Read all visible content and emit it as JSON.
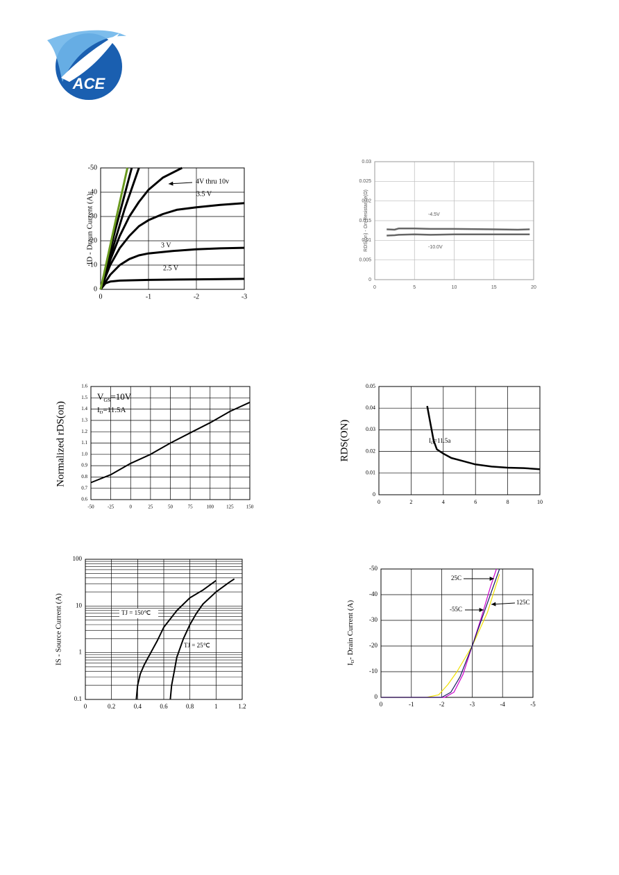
{
  "logo": {
    "text": "ACE"
  },
  "chart_data": [
    {
      "type": "line",
      "y_label": "ID - Draun Current (A)",
      "xlim": [
        0,
        -3
      ],
      "xticks": [
        0,
        -1,
        -2,
        -3
      ],
      "ylim": [
        0,
        -50
      ],
      "yticks": [
        0,
        -10,
        -20,
        -30,
        -40,
        -50
      ],
      "grid": true,
      "series": [
        {
          "name": "2.5 V",
          "color": "#000000",
          "x": [
            0,
            -0.1,
            -0.2,
            -0.4,
            -1,
            -2,
            -3
          ],
          "values": [
            0,
            -2.5,
            -3.2,
            -3.6,
            -3.9,
            -4.1,
            -4.3
          ]
        },
        {
          "name": "3 V",
          "color": "#000000",
          "x": [
            0,
            -0.2,
            -0.4,
            -0.6,
            -0.8,
            -1,
            -1.5,
            -2,
            -2.5,
            -3
          ],
          "values": [
            0,
            -6,
            -10,
            -12.5,
            -14,
            -14.8,
            -15.8,
            -16.5,
            -16.9,
            -17.1
          ]
        },
        {
          "name": "3.5 V",
          "color": "#000000",
          "x": [
            0,
            -0.2,
            -0.4,
            -0.6,
            -0.8,
            -1,
            -1.3,
            -1.6,
            -2,
            -2.5,
            -3
          ],
          "values": [
            0,
            -10,
            -17,
            -22,
            -26,
            -28.5,
            -31,
            -32.8,
            -33.8,
            -34.8,
            -35.5
          ]
        },
        {
          "name": "4V thru 10v",
          "color": "#000000",
          "x": [
            0,
            -0.2,
            -0.4,
            -0.6,
            -0.8,
            -1,
            -1.3,
            -1.7
          ],
          "values": [
            0,
            -12,
            -22,
            -30,
            -36,
            -41,
            -46,
            -50
          ]
        },
        {
          "color": "#000000",
          "x": [
            0,
            -0.3,
            -0.5,
            -0.8
          ],
          "values": [
            0,
            -20,
            -33,
            -50
          ]
        },
        {
          "color": "#000000",
          "x": [
            0,
            -0.3,
            -0.65
          ],
          "values": [
            0,
            -24,
            -50
          ]
        },
        {
          "color": "#6a9a1f",
          "x": [
            0,
            -0.3,
            -0.56
          ],
          "values": [
            0,
            -27,
            -50
          ]
        }
      ]
    },
    {
      "type": "line",
      "y_label": "RDS(on) - On-Resistance(Ω)",
      "xlim": [
        0,
        20
      ],
      "xticks": [
        0,
        5,
        10,
        15,
        20
      ],
      "ylim": [
        0,
        0.03
      ],
      "yticks": [
        0,
        0.005,
        0.01,
        0.015,
        0.02,
        0.025,
        0.03
      ],
      "grid": true,
      "series": [
        {
          "name": "-4.5V",
          "color": "#666666",
          "x": [
            1.5,
            2.5,
            3,
            5,
            7,
            10,
            15,
            18,
            19.5
          ],
          "values": [
            0.0128,
            0.0127,
            0.013,
            0.013,
            0.0129,
            0.0129,
            0.0128,
            0.0127,
            0.0128
          ]
        },
        {
          "name": "-10.0V",
          "color": "#666666",
          "x": [
            1.5,
            2.5,
            3,
            5,
            7,
            10,
            15,
            18,
            19.5
          ],
          "values": [
            0.0112,
            0.0113,
            0.0114,
            0.0115,
            0.0114,
            0.0115,
            0.0115,
            0.0115,
            0.0115
          ]
        }
      ]
    },
    {
      "type": "line",
      "y_label": "Normalized rDS(on)",
      "xlim": [
        -50,
        150
      ],
      "xticks": [
        -50,
        -25,
        0,
        25,
        50,
        75,
        100,
        125,
        150
      ],
      "ylim": [
        0.6,
        1.6
      ],
      "yticks": [
        0.6,
        0.7,
        0.8,
        0.9,
        {
          "value": 1,
          "label": "1.0"
        },
        1.1,
        1.2,
        1.3,
        1.4,
        1.5,
        1.6
      ],
      "grid": true,
      "annotations": [
        {
          "parts": [
            {
              "text": "V"
            },
            {
              "text": "GS",
              "sub": true
            },
            {
              "text": "=10V"
            }
          ]
        },
        {
          "parts": [
            {
              "text": "I"
            },
            {
              "text": "D",
              "sub": true
            },
            {
              "text": "=11.5A"
            }
          ]
        }
      ],
      "series": [
        {
          "color": "#000000",
          "x": [
            -50,
            -25,
            0,
            25,
            50,
            75,
            100,
            125,
            150
          ],
          "values": [
            0.75,
            0.82,
            0.92,
            1.0,
            1.1,
            1.19,
            1.28,
            1.38,
            1.46
          ]
        }
      ]
    },
    {
      "type": "line",
      "y_label": "RDS(ON)",
      "xlim": [
        0,
        10
      ],
      "xticks": [
        0,
        2,
        4,
        6,
        8,
        10
      ],
      "ylim": [
        0,
        0.05
      ],
      "yticks": [
        0,
        0.01,
        0.02,
        0.03,
        0.04,
        0.05
      ],
      "grid": true,
      "annotations": [
        {
          "parts": [
            {
              "text": "I"
            },
            {
              "text": "D",
              "sub": true
            },
            {
              "text": "=11.5a"
            }
          ]
        }
      ],
      "series": [
        {
          "color": "#000000",
          "x": [
            3,
            3.2,
            3.4,
            3.6,
            4,
            4.5,
            5,
            6,
            7,
            8,
            9,
            10
          ],
          "values": [
            0.041,
            0.033,
            0.025,
            0.021,
            0.019,
            0.017,
            0.016,
            0.014,
            0.013,
            0.0125,
            0.0123,
            0.0118
          ]
        }
      ]
    },
    {
      "type": "line",
      "y_label": "IS - Source Current (A)",
      "log_y": true,
      "minor_grid": true,
      "xlim": [
        0,
        1.2
      ],
      "xticks": [
        0,
        0.2,
        0.4,
        0.6,
        0.8,
        1,
        1.2
      ],
      "ylim": [
        0.1,
        100
      ],
      "yticks": [
        0.1,
        1,
        10,
        100
      ],
      "grid": true,
      "series": [
        {
          "name": "TJ = 150℃",
          "color": "#000000",
          "x": [
            0.39,
            0.4,
            0.42,
            0.45,
            0.5,
            0.55,
            0.6,
            0.7,
            0.8,
            0.9,
            1.0
          ],
          "values": [
            0.1,
            0.2,
            0.35,
            0.55,
            1,
            1.8,
            3.5,
            8,
            15,
            22,
            35
          ]
        },
        {
          "name": "TJ = 25℃",
          "color": "#000000",
          "x": [
            0.65,
            0.66,
            0.68,
            0.7,
            0.75,
            0.8,
            0.85,
            0.9,
            1.0,
            1.1,
            1.14
          ],
          "values": [
            0.1,
            0.2,
            0.4,
            0.8,
            2,
            4,
            7,
            11,
            20,
            32,
            38
          ]
        }
      ]
    },
    {
      "type": "line",
      "y_label_parts": [
        {
          "text": "I"
        },
        {
          "text": "D",
          "sub": true
        },
        {
          "text": "- Drain Current (A)"
        }
      ],
      "xlim": [
        0,
        -5
      ],
      "xticks": [
        0,
        -1,
        -2,
        -3,
        -4,
        -5
      ],
      "ylim": [
        0,
        -50
      ],
      "yticks": [
        0,
        -10,
        -20,
        -30,
        -40,
        -50
      ],
      "grid": true,
      "series": [
        {
          "name": "125C",
          "color": "#f0e000",
          "x": [
            0,
            -1.5,
            -1.9,
            -2.2,
            -2.5,
            -3,
            -3.5,
            -3.9
          ],
          "values": [
            0,
            0,
            -1,
            -5,
            -10,
            -20,
            -33,
            -48
          ]
        },
        {
          "name": "-55C",
          "color": "#cc00cc",
          "x": [
            0,
            -2.1,
            -2.4,
            -2.7,
            -3,
            -3.3,
            -3.6,
            -3.8
          ],
          "values": [
            0,
            0,
            -2,
            -9,
            -20,
            -31,
            -43,
            -50
          ]
        },
        {
          "name": "25C",
          "color": "#1a1a60",
          "x": [
            0,
            -2,
            -2.3,
            -2.6,
            -3,
            -3.3,
            -3.6,
            -3.9
          ],
          "values": [
            0,
            0,
            -2,
            -8,
            -20,
            -30,
            -40,
            -50
          ]
        }
      ]
    }
  ]
}
